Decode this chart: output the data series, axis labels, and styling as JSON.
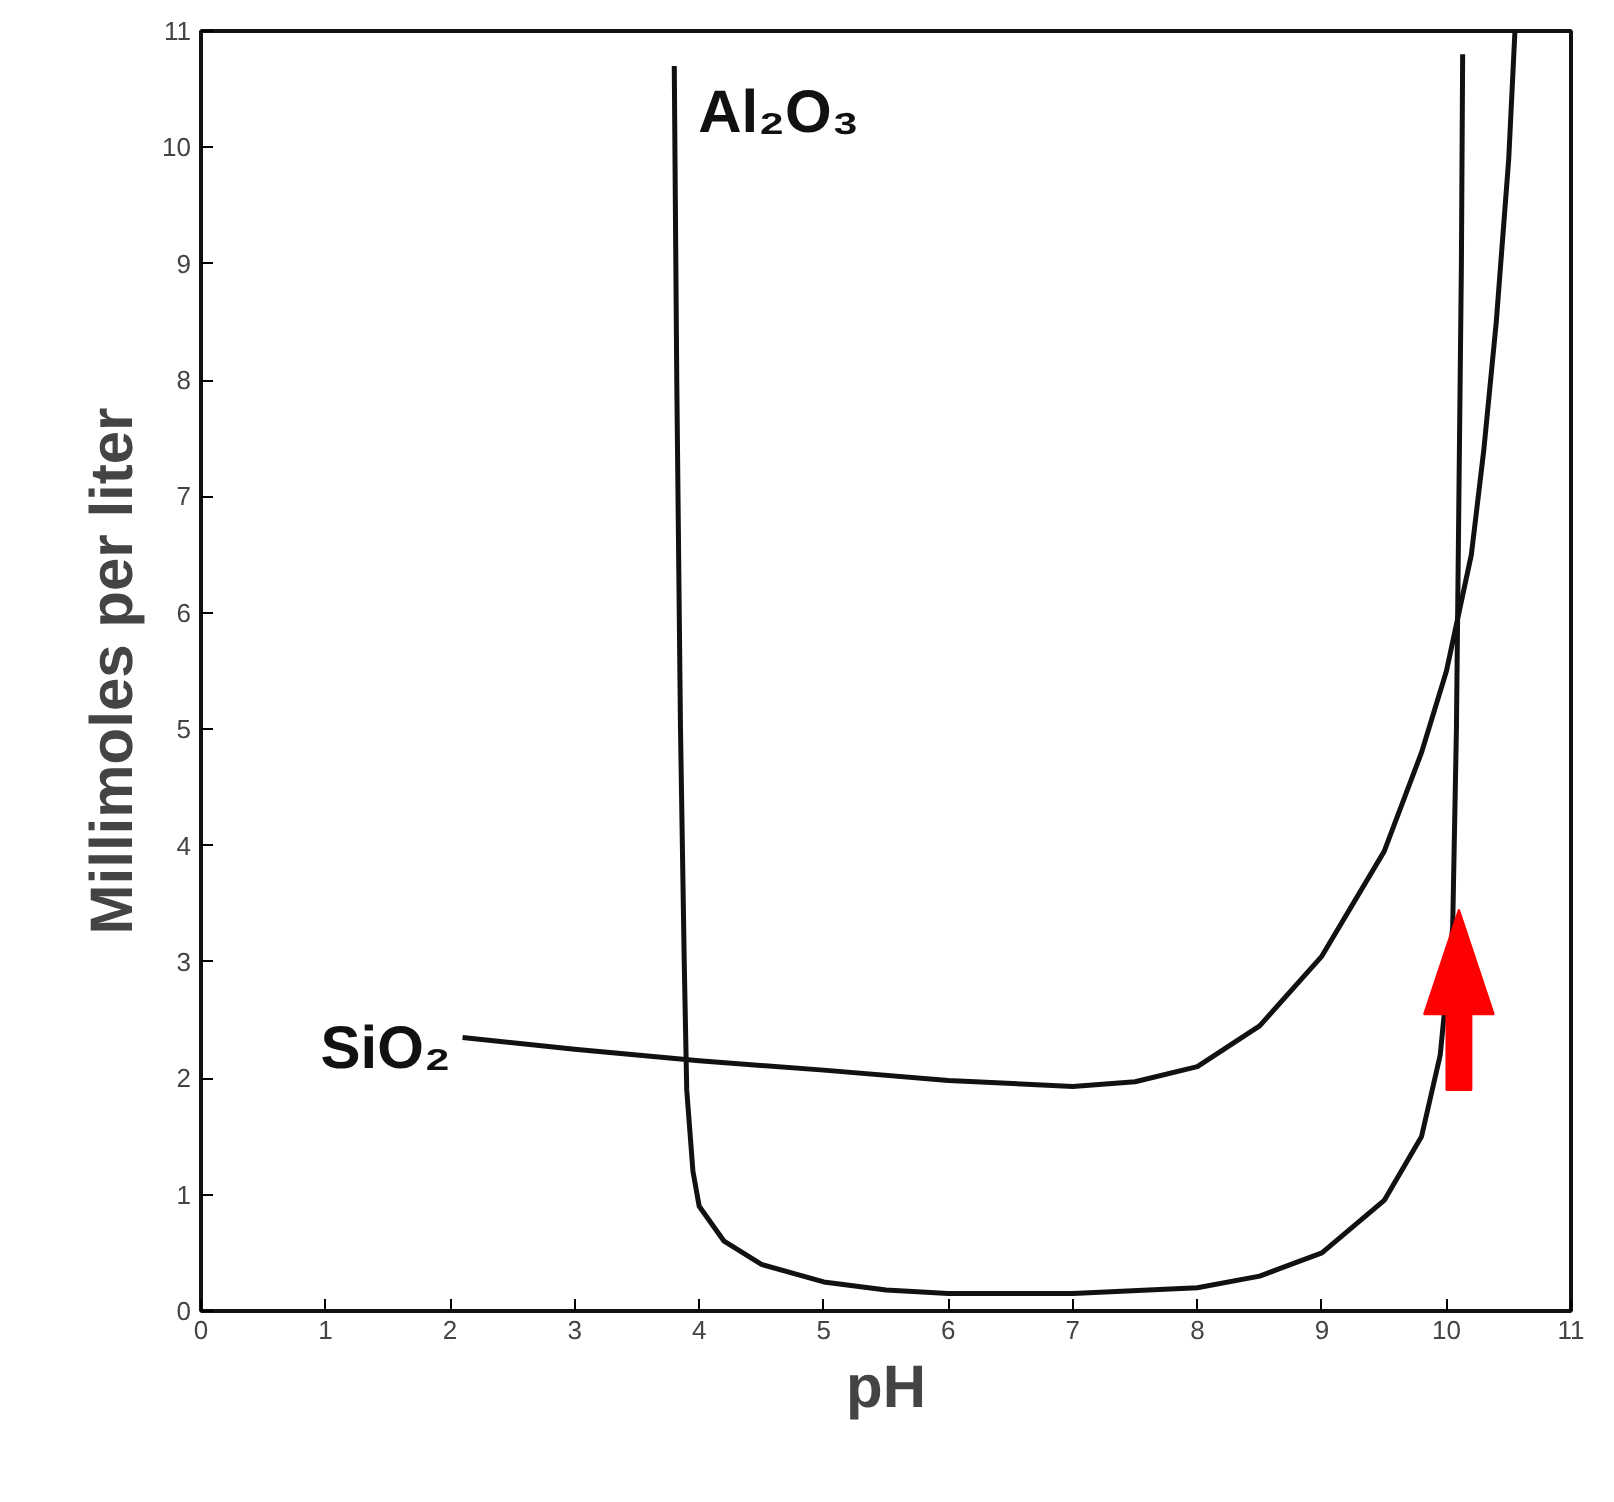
{
  "chart_data": {
    "type": "line",
    "xlabel": "pH",
    "ylabel": "Millimoles per liter",
    "xlim": [
      0,
      11
    ],
    "ylim": [
      0,
      11
    ],
    "xticks": [
      0,
      1,
      2,
      3,
      4,
      5,
      6,
      7,
      8,
      9,
      10,
      11
    ],
    "yticks": [
      0,
      1,
      2,
      3,
      4,
      5,
      6,
      7,
      8,
      9,
      10,
      11
    ],
    "grid": false,
    "marker": "none",
    "line_style": "solid",
    "series": [
      {
        "name": "SiO₂",
        "color": "#111111",
        "x": [
          2.1,
          3,
          4,
          5,
          6,
          7,
          7.5,
          8,
          8.5,
          9,
          9.5,
          9.8,
          10,
          10.2,
          10.3,
          10.4,
          10.5,
          10.55
        ],
        "values": [
          2.35,
          2.25,
          2.15,
          2.07,
          1.98,
          1.93,
          1.97,
          2.1,
          2.45,
          3.05,
          3.95,
          4.8,
          5.5,
          6.5,
          7.4,
          8.5,
          9.9,
          11
        ]
      },
      {
        "name": "Al₂O₃",
        "color": "#111111",
        "x": [
          3.8,
          3.82,
          3.85,
          3.88,
          3.9,
          3.95,
          4,
          4.2,
          4.5,
          5,
          5.5,
          6,
          7,
          8,
          8.5,
          9,
          9.5,
          9.8,
          9.95,
          10.05,
          10.08,
          10.1,
          10.12,
          10.13
        ],
        "values": [
          10.7,
          8,
          5,
          3,
          1.9,
          1.2,
          0.9,
          0.6,
          0.4,
          0.25,
          0.18,
          0.15,
          0.15,
          0.2,
          0.3,
          0.5,
          0.95,
          1.5,
          2.2,
          3.3,
          5,
          7,
          9,
          10.8
        ]
      }
    ]
  }
}
